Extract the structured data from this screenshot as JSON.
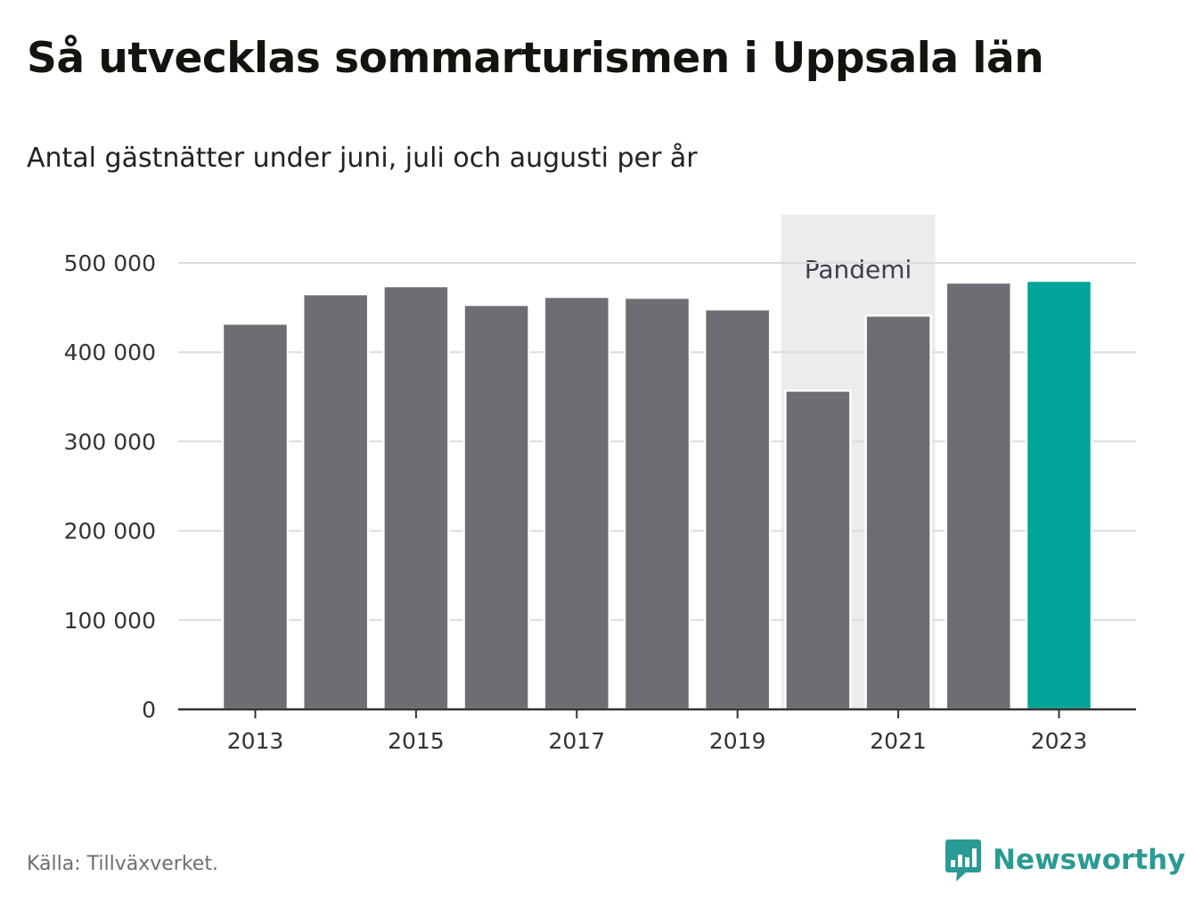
{
  "header": {
    "title": "Så utvecklas sommarturismen i Uppsala län",
    "subtitle": "Antal gästnätter under juni, juli och augusti per år"
  },
  "footer": {
    "source": "Källa: Tillväxverket.",
    "brand": "Newsworthy",
    "brand_icon": "newsworthy-logo-icon"
  },
  "colors": {
    "bar": "#6e6d73",
    "highlight": "#00a499",
    "band": "#ececec",
    "grid": "#dcdcdc",
    "axis": "#333333",
    "brand": "#2a9a94"
  },
  "chart_data": {
    "type": "bar",
    "title": "Så utvecklas sommarturismen i Uppsala län",
    "subtitle": "Antal gästnätter under juni, juli och augusti per år",
    "categories": [
      "2013",
      "2014",
      "2015",
      "2016",
      "2017",
      "2018",
      "2019",
      "2020",
      "2021",
      "2022",
      "2023"
    ],
    "values": [
      432000,
      465000,
      474000,
      453000,
      462000,
      461000,
      448000,
      357000,
      441000,
      478000,
      480000
    ],
    "highlight_category": "2023",
    "x_tick_labels": [
      "2013",
      "2015",
      "2017",
      "2019",
      "2021",
      "2023"
    ],
    "ylim": [
      0,
      550000
    ],
    "y_ticks": [
      0,
      100000,
      200000,
      300000,
      400000,
      500000
    ],
    "y_tick_labels": [
      "0",
      "100 000",
      "200 000",
      "300 000",
      "400 000",
      "500 000"
    ],
    "grid": true,
    "legend": "none",
    "annotations": [
      {
        "type": "band",
        "from": "2020",
        "to": "2021",
        "label": "Pandemi"
      }
    ],
    "xlabel": "",
    "ylabel": ""
  }
}
